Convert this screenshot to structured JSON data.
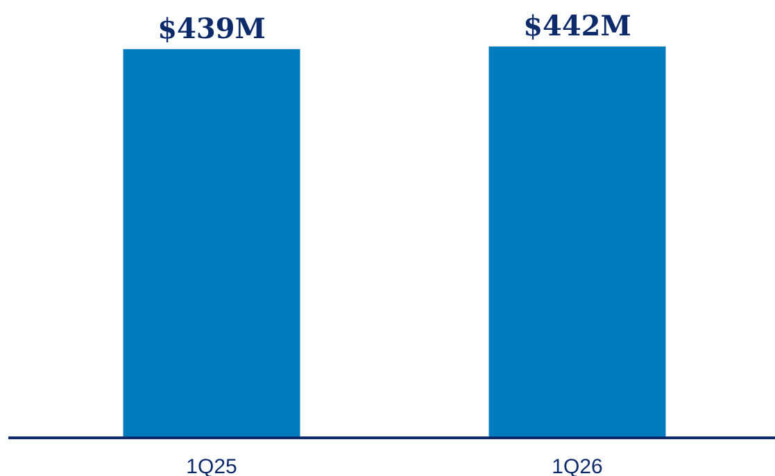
{
  "chart_data": {
    "type": "bar",
    "categories": [
      "1Q25",
      "1Q26"
    ],
    "values": [
      439,
      442
    ],
    "data_labels": [
      "$439M",
      "$442M"
    ],
    "unit": "$M",
    "title": "",
    "xlabel": "",
    "ylabel": "",
    "ylim": [
      0,
      442
    ],
    "grid": false,
    "legend": "none"
  },
  "colors": {
    "bar": "#007bbd",
    "axis": "#0d2a6b",
    "label": "#0d2a6b",
    "tick": "#0d2a6b",
    "background": "#ffffff"
  }
}
